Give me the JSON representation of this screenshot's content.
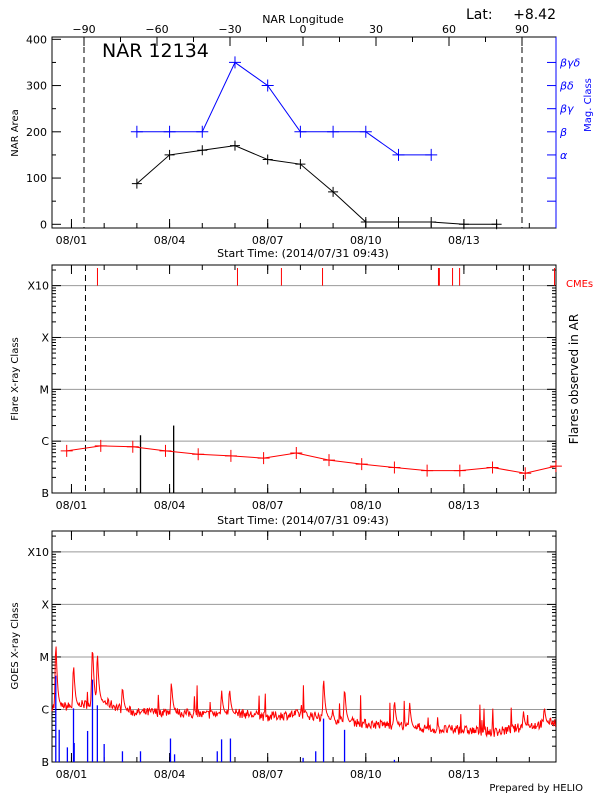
{
  "header": {
    "lat_label": "Lat:",
    "lat_value": "+8.42",
    "top_axis_label": "NAR Longitude",
    "footer": "Prepared by HELIO"
  },
  "colors": {
    "area": "#000000",
    "mag_class": "#0000ff",
    "flare_baseline": "#ff0000",
    "cme": "#ff0000",
    "goes": "#ff0000",
    "other_flares": "#0000ff",
    "ar_flares": "#000000",
    "grid": "#999999"
  },
  "chart_data": [
    {
      "type": "line",
      "title": "NAR 12134",
      "xlabel": "Start Time: (2014/07/31 09:43)",
      "ylabel": "NAR Area",
      "y2label": "Mag. Class",
      "x2label": "NAR Longitude",
      "xlim": [
        "2014-07-31T09:43",
        "2014-08-15T19:35"
      ],
      "ylim": [
        -8,
        405
      ],
      "x_ticks": [
        "08/01",
        "08/04",
        "08/07",
        "08/10",
        "08/13"
      ],
      "x_tick_dates": [
        "2014-08-01T00:00",
        "2014-08-04T00:00",
        "2014-08-07T00:00",
        "2014-08-10T00:00",
        "2014-08-13T00:00"
      ],
      "y_ticks": [
        0,
        100,
        200,
        300,
        400
      ],
      "x2_ticks": [
        -90,
        -60,
        -30,
        0,
        30,
        60,
        90
      ],
      "x2lim": [
        -90,
        90
      ],
      "limb_lines_longitude": [
        -90,
        90
      ],
      "y2_ticks": [
        "α",
        "β",
        "βγ",
        "βδ",
        "βγδ"
      ],
      "y2_tick_area_equiv": [
        150,
        200,
        250,
        300,
        350
      ],
      "series": [
        {
          "x": [
            "2014-08-03T00:00",
            "2014-08-04T00:00",
            "2014-08-05T00:00",
            "2014-08-06T00:00",
            "2014-08-07T00:00",
            "2014-08-08T00:00",
            "2014-08-09T00:00",
            "2014-08-10T00:00",
            "2014-08-11T00:00",
            "2014-08-12T00:00",
            "2014-08-13T00:00",
            "2014-08-14T00:00"
          ],
          "values": [
            88,
            150,
            160,
            170,
            140,
            130,
            70,
            5,
            5,
            5,
            0,
            0
          ]
        },
        {
          "x": [
            "2014-08-03T00:00",
            "2014-08-04T00:00",
            "2014-08-05T00:00",
            "2014-08-06T00:00",
            "2014-08-07T00:00",
            "2014-08-08T00:00",
            "2014-08-09T00:00",
            "2014-08-10T00:00",
            "2014-08-11T00:00",
            "2014-08-12T00:00"
          ],
          "values": [
            "β",
            "β",
            "β",
            "βγδ",
            "βδ",
            "β",
            "β",
            "β",
            "α",
            "α"
          ]
        }
      ]
    },
    {
      "type": "line",
      "xlabel": "Start Time: (2014/07/31 09:43)",
      "ylabel": "Flare X-ray Class",
      "y2label": "Flares observed in AR",
      "cme_label": "CMEs",
      "y_scale": "log",
      "ylim": [
        1e-07,
        0.0025
      ],
      "y_ticks": [
        "B",
        "C",
        "M",
        "X",
        "X10"
      ],
      "y_tick_values": [
        1e-07,
        1e-06,
        1e-05,
        0.0001,
        0.001
      ],
      "grid": true,
      "limb_lines": [
        "2014-08-01T10:17",
        "2014-08-14T19:40"
      ],
      "baseline": {
        "x": [
          "2014-07-31T20:30",
          "2014-08-01T21:30",
          "2014-08-02T21:00",
          "2014-08-03T21:00",
          "2014-08-04T21:00",
          "2014-08-05T21:00",
          "2014-08-06T21:00",
          "2014-08-07T21:00",
          "2014-08-08T21:00",
          "2014-08-09T21:00",
          "2014-08-10T21:00",
          "2014-08-11T21:00",
          "2014-08-12T21:00",
          "2014-08-13T21:00",
          "2014-08-14T21:00",
          "2014-08-15T19:30"
        ],
        "values": [
          6.5e-07,
          8.1e-07,
          7.8e-07,
          6.5e-07,
          5.6e-07,
          5.2e-07,
          4.7e-07,
          5.9e-07,
          4.3e-07,
          3.6e-07,
          3.1e-07,
          2.7e-07,
          2.7e-07,
          3.1e-07,
          2.4e-07,
          3.3e-07
        ]
      },
      "ar_flares": [
        {
          "time": "2014-08-03T02:40",
          "flux": 1.3e-06
        },
        {
          "time": "2014-08-04T03:00",
          "flux": 2e-06
        }
      ],
      "cmes": [
        "2014-08-01T19:05",
        "2014-08-06T01:50",
        "2014-08-07T10:05",
        "2014-08-08T16:15",
        "2014-08-12T05:20",
        "2014-08-12T06:00",
        "2014-08-12T15:40",
        "2014-08-12T20:50",
        "2014-08-15T18:30"
      ]
    },
    {
      "type": "line",
      "ylabel": "GOES X-ray Class",
      "y_scale": "log",
      "ylim": [
        1e-07,
        0.0025
      ],
      "y_ticks": [
        "B",
        "C",
        "M",
        "X",
        "X10"
      ],
      "y_tick_values": [
        1e-07,
        1e-06,
        1e-05,
        0.0001,
        0.001
      ],
      "grid": true,
      "goes_background": {
        "x": [
          "2014-07-31T09:43",
          "2014-08-01T00:00",
          "2014-08-02T00:00",
          "2014-08-02T12:00",
          "2014-08-03T00:00",
          "2014-08-04T00:00",
          "2014-08-05T00:00",
          "2014-08-06T00:00",
          "2014-08-07T00:00",
          "2014-08-08T00:00",
          "2014-08-09T00:00",
          "2014-08-10T00:00",
          "2014-08-11T00:00",
          "2014-08-12T00:00",
          "2014-08-13T00:00",
          "2014-08-14T00:00",
          "2014-08-15T00:00",
          "2014-08-15T19:35"
        ],
        "values": [
          1.05e-06,
          1.05e-06,
          1.3e-06,
          9.6e-07,
          8e-07,
          8.3e-07,
          7.3e-07,
          8e-07,
          6.7e-07,
          7.6e-07,
          6.1e-07,
          4.9e-07,
          4.6e-07,
          3.9e-07,
          3.7e-07,
          3.4e-07,
          4.5e-07,
          5.3e-07
        ]
      },
      "goes_peaks": [
        {
          "time": "2014-07-31T12:30",
          "flux": 2.7e-05
        },
        {
          "time": "2014-08-01T01:30",
          "flux": 9e-06
        },
        {
          "time": "2014-08-01T15:25",
          "flux": 2.2e-05
        },
        {
          "time": "2014-08-01T19:00",
          "flux": 1.6e-05
        },
        {
          "time": "2014-08-02T13:25",
          "flux": 3e-06
        },
        {
          "time": "2014-08-04T01:20",
          "flux": 3.7e-06
        },
        {
          "time": "2014-08-05T14:10",
          "flux": 2.4e-06
        },
        {
          "time": "2014-08-05T20:00",
          "flux": 2.8e-06
        },
        {
          "time": "2014-08-08T17:00",
          "flux": 4.9e-06
        },
        {
          "time": "2014-08-09T08:25",
          "flux": 3e-06
        },
        {
          "time": "2014-08-10T21:00",
          "flux": 1.7e-06
        },
        {
          "time": "2014-08-11T08:10",
          "flux": 1.4e-06
        },
        {
          "time": "2014-08-14T19:40",
          "flux": 9.5e-07
        },
        {
          "time": "2014-08-15T11:00",
          "flux": 1.2e-06
        }
      ],
      "other_flares": [
        {
          "time": "2014-07-31T12:30",
          "flux": 4.4e-06
        },
        {
          "time": "2014-07-31T15:00",
          "flux": 4.1e-07
        },
        {
          "time": "2014-07-31T21:00",
          "flux": 1.9e-07
        },
        {
          "time": "2014-08-01T01:30",
          "flux": 1.05e-06
        },
        {
          "time": "2014-08-01T02:00",
          "flux": 2.3e-07
        },
        {
          "time": "2014-08-01T11:50",
          "flux": 3.9e-07
        },
        {
          "time": "2014-08-01T15:25",
          "flux": 3.7e-06
        },
        {
          "time": "2014-08-01T19:00",
          "flux": 1.2e-06
        },
        {
          "time": "2014-08-02T00:00",
          "flux": 2.2e-07
        },
        {
          "time": "2014-08-02T13:25",
          "flux": 1.6e-07
        },
        {
          "time": "2014-08-03T02:40",
          "flux": 1.6e-07
        },
        {
          "time": "2014-08-04T00:40",
          "flux": 2.8e-07
        },
        {
          "time": "2014-08-04T03:40",
          "flux": 1.4e-07
        },
        {
          "time": "2014-08-05T11:00",
          "flux": 1.6e-07
        },
        {
          "time": "2014-08-05T14:10",
          "flux": 2.7e-07
        },
        {
          "time": "2014-08-05T20:40",
          "flux": 2.8e-07
        },
        {
          "time": "2014-08-08T02:00",
          "flux": 1.2e-07
        },
        {
          "time": "2014-08-08T11:15",
          "flux": 1.6e-07
        },
        {
          "time": "2014-08-08T17:00",
          "flux": 6.7e-07
        },
        {
          "time": "2014-08-09T08:25",
          "flux": 4.1e-07
        },
        {
          "time": "2014-08-10T21:00",
          "flux": 1.1e-07
        }
      ]
    }
  ]
}
